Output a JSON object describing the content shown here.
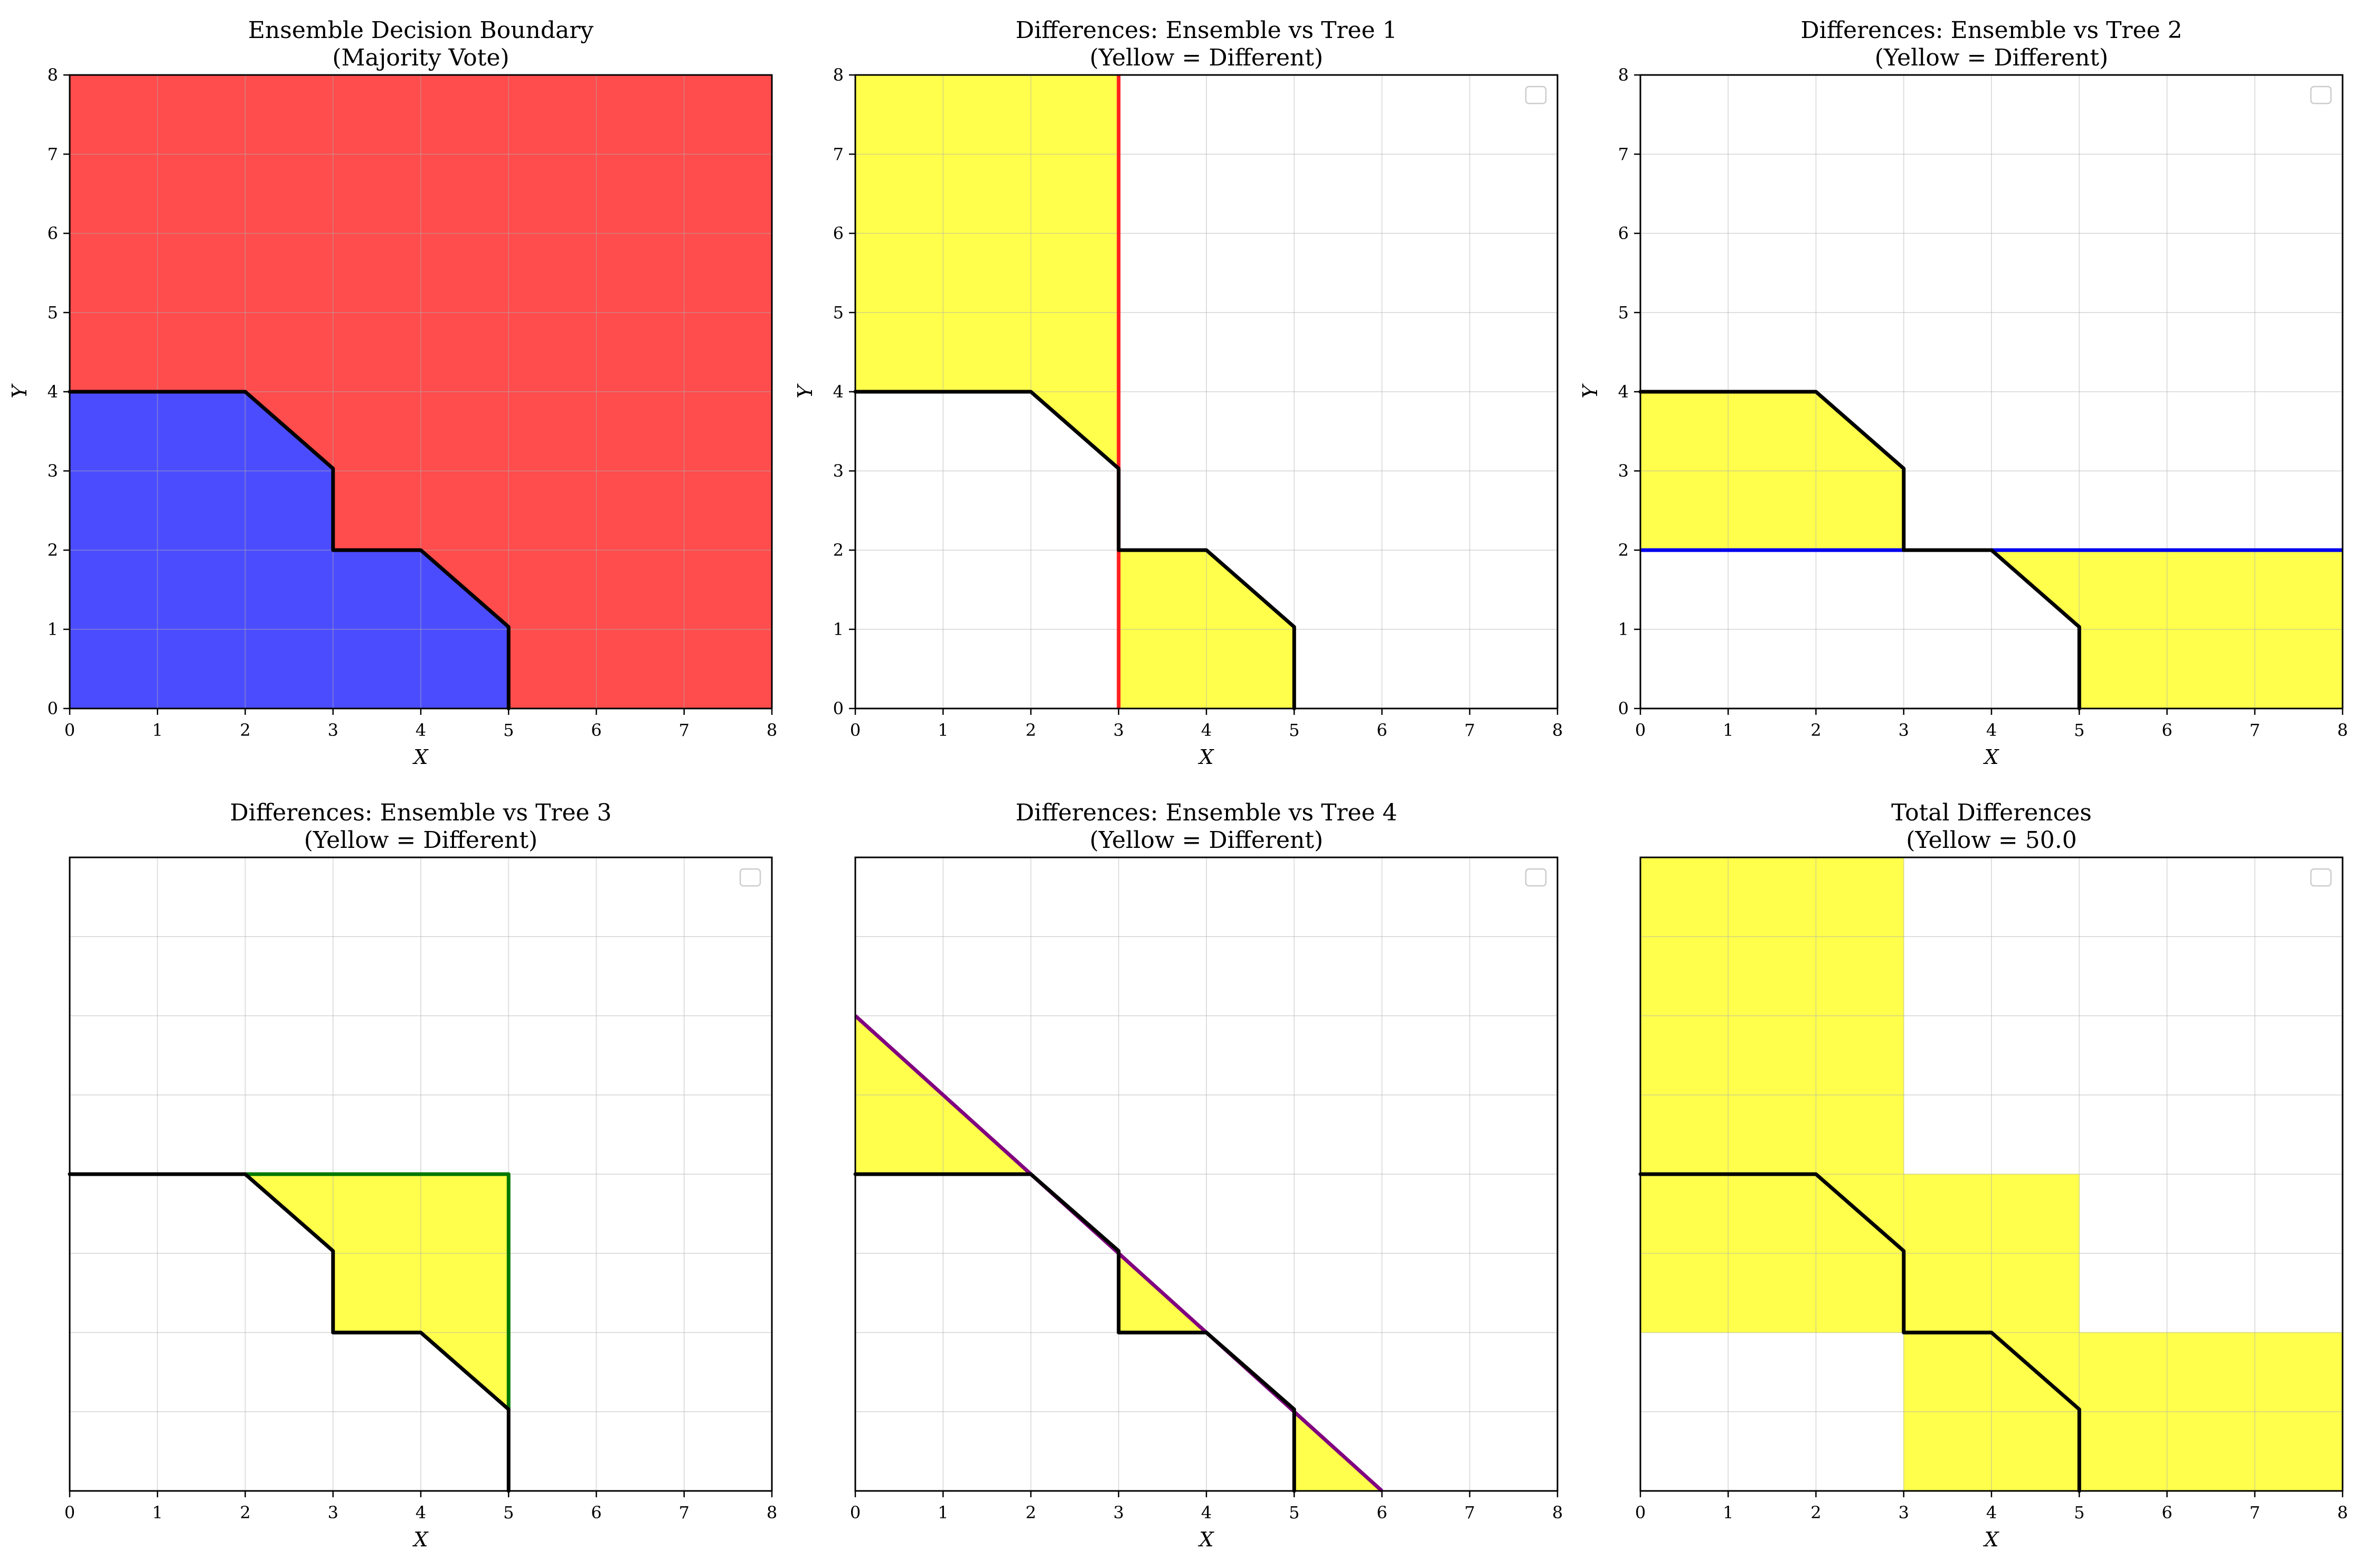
{
  "chart_data": [
    {
      "type": "area",
      "title": [
        "Ensemble Decision Boundary",
        "(Majority Vote)"
      ],
      "xlabel": "X",
      "ylabel": "Y",
      "xlim": [
        0,
        8
      ],
      "ylim": [
        0,
        8
      ],
      "xticks": [
        "0",
        "1",
        "2",
        "3",
        "4",
        "5",
        "6",
        "7",
        "8"
      ],
      "yticks": [
        "0",
        "1",
        "2",
        "3",
        "4",
        "5",
        "6",
        "7",
        "8"
      ],
      "grid": true,
      "legend": "none",
      "regions": [
        {
          "color": "#ff4c4c",
          "points": [
            [
              0,
              0
            ],
            [
              8,
              0
            ],
            [
              8,
              8
            ],
            [
              0,
              8
            ]
          ]
        },
        {
          "color": "#4c4cff",
          "points": [
            [
              0,
              0
            ],
            [
              0,
              4
            ],
            [
              2,
              4
            ],
            [
              3,
              3.03
            ],
            [
              3,
              2
            ],
            [
              4,
              2
            ],
            [
              5,
              1.03
            ],
            [
              5,
              0
            ]
          ]
        }
      ],
      "lines": [],
      "boundary": [
        [
          0,
          4
        ],
        [
          2,
          4
        ],
        [
          3,
          3.03
        ],
        [
          3,
          2
        ],
        [
          4,
          2
        ],
        [
          5,
          1.03
        ],
        [
          5,
          0
        ]
      ]
    },
    {
      "type": "area",
      "title": [
        "Differences: Ensemble vs Tree 1",
        "(Yellow = Different)"
      ],
      "xlabel": "X",
      "ylabel": "Y",
      "xlim": [
        0,
        8
      ],
      "ylim": [
        0,
        8
      ],
      "xticks": [
        "0",
        "1",
        "2",
        "3",
        "4",
        "5",
        "6",
        "7",
        "8"
      ],
      "yticks": [
        "0",
        "1",
        "2",
        "3",
        "4",
        "5",
        "6",
        "7",
        "8"
      ],
      "grid": true,
      "legend": "top-right",
      "regions": [
        {
          "color": "#ffff4c",
          "points": [
            [
              0,
              4
            ],
            [
              0,
              8
            ],
            [
              3,
              8
            ],
            [
              3,
              3.03
            ],
            [
              2,
              4
            ]
          ]
        },
        {
          "color": "#ffff4c",
          "points": [
            [
              3,
              0
            ],
            [
              3,
              2
            ],
            [
              4,
              2
            ],
            [
              5,
              1.03
            ],
            [
              5,
              0
            ]
          ]
        }
      ],
      "lines": [
        {
          "color": "#ff2020",
          "points": [
            [
              3,
              0
            ],
            [
              3,
              8
            ]
          ]
        }
      ],
      "boundary": [
        [
          0,
          4
        ],
        [
          2,
          4
        ],
        [
          3,
          3.03
        ],
        [
          3,
          2
        ],
        [
          4,
          2
        ],
        [
          5,
          1.03
        ],
        [
          5,
          0
        ]
      ]
    },
    {
      "type": "area",
      "title": [
        "Differences: Ensemble vs Tree 2",
        "(Yellow = Different)"
      ],
      "xlabel": "X",
      "ylabel": "Y",
      "xlim": [
        0,
        8
      ],
      "ylim": [
        0,
        8
      ],
      "xticks": [
        "0",
        "1",
        "2",
        "3",
        "4",
        "5",
        "6",
        "7",
        "8"
      ],
      "yticks": [
        "0",
        "1",
        "2",
        "3",
        "4",
        "5",
        "6",
        "7",
        "8"
      ],
      "grid": true,
      "legend": "top-right",
      "regions": [
        {
          "color": "#ffff4c",
          "points": [
            [
              0,
              2
            ],
            [
              0,
              4
            ],
            [
              2,
              4
            ],
            [
              3,
              3.03
            ],
            [
              3,
              2
            ]
          ]
        },
        {
          "color": "#ffff4c",
          "points": [
            [
              4,
              2
            ],
            [
              8,
              2
            ],
            [
              8,
              0
            ],
            [
              5,
              0
            ],
            [
              5,
              1.03
            ]
          ]
        }
      ],
      "lines": [
        {
          "color": "#0000ee",
          "points": [
            [
              0,
              2
            ],
            [
              8,
              2
            ]
          ]
        }
      ],
      "boundary": [
        [
          0,
          4
        ],
        [
          2,
          4
        ],
        [
          3,
          3.03
        ],
        [
          3,
          2
        ],
        [
          4,
          2
        ],
        [
          5,
          1.03
        ],
        [
          5,
          0
        ]
      ]
    },
    {
      "type": "area",
      "title": [
        "Differences: Ensemble vs Tree 3",
        "(Yellow = Different)"
      ],
      "xlabel": "X",
      "ylabel": "",
      "xlim": [
        0,
        8
      ],
      "ylim": [
        0,
        8
      ],
      "xticks": [
        "0",
        "1",
        "2",
        "3",
        "4",
        "5",
        "6",
        "7",
        "8"
      ],
      "yticks": [],
      "grid": true,
      "legend": "top-right",
      "regions": [
        {
          "color": "#ffff4c",
          "points": [
            [
              2,
              4
            ],
            [
              5,
              4
            ],
            [
              5,
              1.03
            ],
            [
              4,
              2
            ],
            [
              3,
              2
            ],
            [
              3,
              3.03
            ]
          ]
        }
      ],
      "lines": [
        {
          "color": "#007700",
          "points": [
            [
              2,
              4
            ],
            [
              5,
              4
            ],
            [
              5,
              1.03
            ]
          ]
        }
      ],
      "boundary": [
        [
          0,
          4
        ],
        [
          2,
          4
        ],
        [
          3,
          3.03
        ],
        [
          3,
          2
        ],
        [
          4,
          2
        ],
        [
          5,
          1.03
        ],
        [
          5,
          0
        ]
      ]
    },
    {
      "type": "area",
      "title": [
        "Differences: Ensemble vs Tree 4",
        "(Yellow = Different)"
      ],
      "xlabel": "X",
      "ylabel": "",
      "xlim": [
        0,
        8
      ],
      "ylim": [
        0,
        8
      ],
      "xticks": [
        "0",
        "1",
        "2",
        "3",
        "4",
        "5",
        "6",
        "7",
        "8"
      ],
      "yticks": [],
      "grid": true,
      "legend": "top-right",
      "regions": [
        {
          "color": "#ffff4c",
          "points": [
            [
              0,
              4
            ],
            [
              0,
              6
            ],
            [
              2,
              4
            ]
          ]
        },
        {
          "color": "#ffff4c",
          "points": [
            [
              3,
              3
            ],
            [
              3,
              2
            ],
            [
              4,
              2
            ]
          ]
        },
        {
          "color": "#ffff4c",
          "points": [
            [
              5,
              1
            ],
            [
              5,
              0
            ],
            [
              6,
              0
            ]
          ]
        }
      ],
      "lines": [
        {
          "color": "#800080",
          "points": [
            [
              0,
              6
            ],
            [
              6,
              0
            ]
          ]
        }
      ],
      "boundary": [
        [
          0,
          4
        ],
        [
          2,
          4
        ],
        [
          3,
          3.03
        ],
        [
          3,
          2
        ],
        [
          4,
          2
        ],
        [
          5,
          1.03
        ],
        [
          5,
          0
        ]
      ]
    },
    {
      "type": "area",
      "title": [
        "Total Differences",
        "(Yellow = 50.0"
      ],
      "xlabel": "X",
      "ylabel": "",
      "xlim": [
        0,
        8
      ],
      "ylim": [
        0,
        8
      ],
      "xticks": [
        "0",
        "1",
        "2",
        "3",
        "4",
        "5",
        "6",
        "7",
        "8"
      ],
      "yticks": [],
      "grid": true,
      "legend": "top-right",
      "regions": [
        {
          "color": "#ffff4c",
          "points": [
            [
              0,
              2
            ],
            [
              0,
              8
            ],
            [
              3,
              8
            ],
            [
              3,
              2
            ]
          ]
        },
        {
          "color": "#ffff4c",
          "points": [
            [
              3,
              0
            ],
            [
              3,
              4
            ],
            [
              5,
              4
            ],
            [
              5,
              0
            ]
          ]
        },
        {
          "color": "#ffff4c",
          "points": [
            [
              5,
              0
            ],
            [
              5,
              2
            ],
            [
              8,
              2
            ],
            [
              8,
              0
            ]
          ]
        }
      ],
      "lines": [],
      "boundary": [
        [
          0,
          4
        ],
        [
          2,
          4
        ],
        [
          3,
          3.03
        ],
        [
          3,
          2
        ],
        [
          4,
          2
        ],
        [
          5,
          1.03
        ],
        [
          5,
          0
        ]
      ]
    }
  ]
}
